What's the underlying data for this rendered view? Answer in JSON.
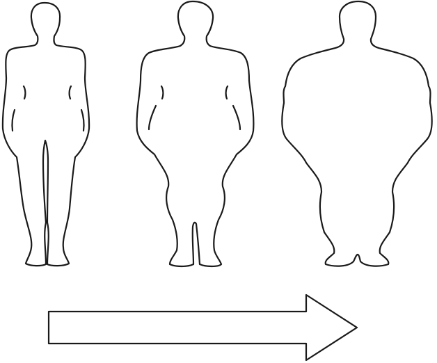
{
  "figures": [
    {
      "name": "slim",
      "order": 1
    },
    {
      "name": "overweight",
      "order": 2
    },
    {
      "name": "obese",
      "order": 3
    }
  ],
  "arrow": {
    "direction": "right"
  },
  "colors": {
    "stroke": "#1a1a1a",
    "background": "#ffffff"
  }
}
